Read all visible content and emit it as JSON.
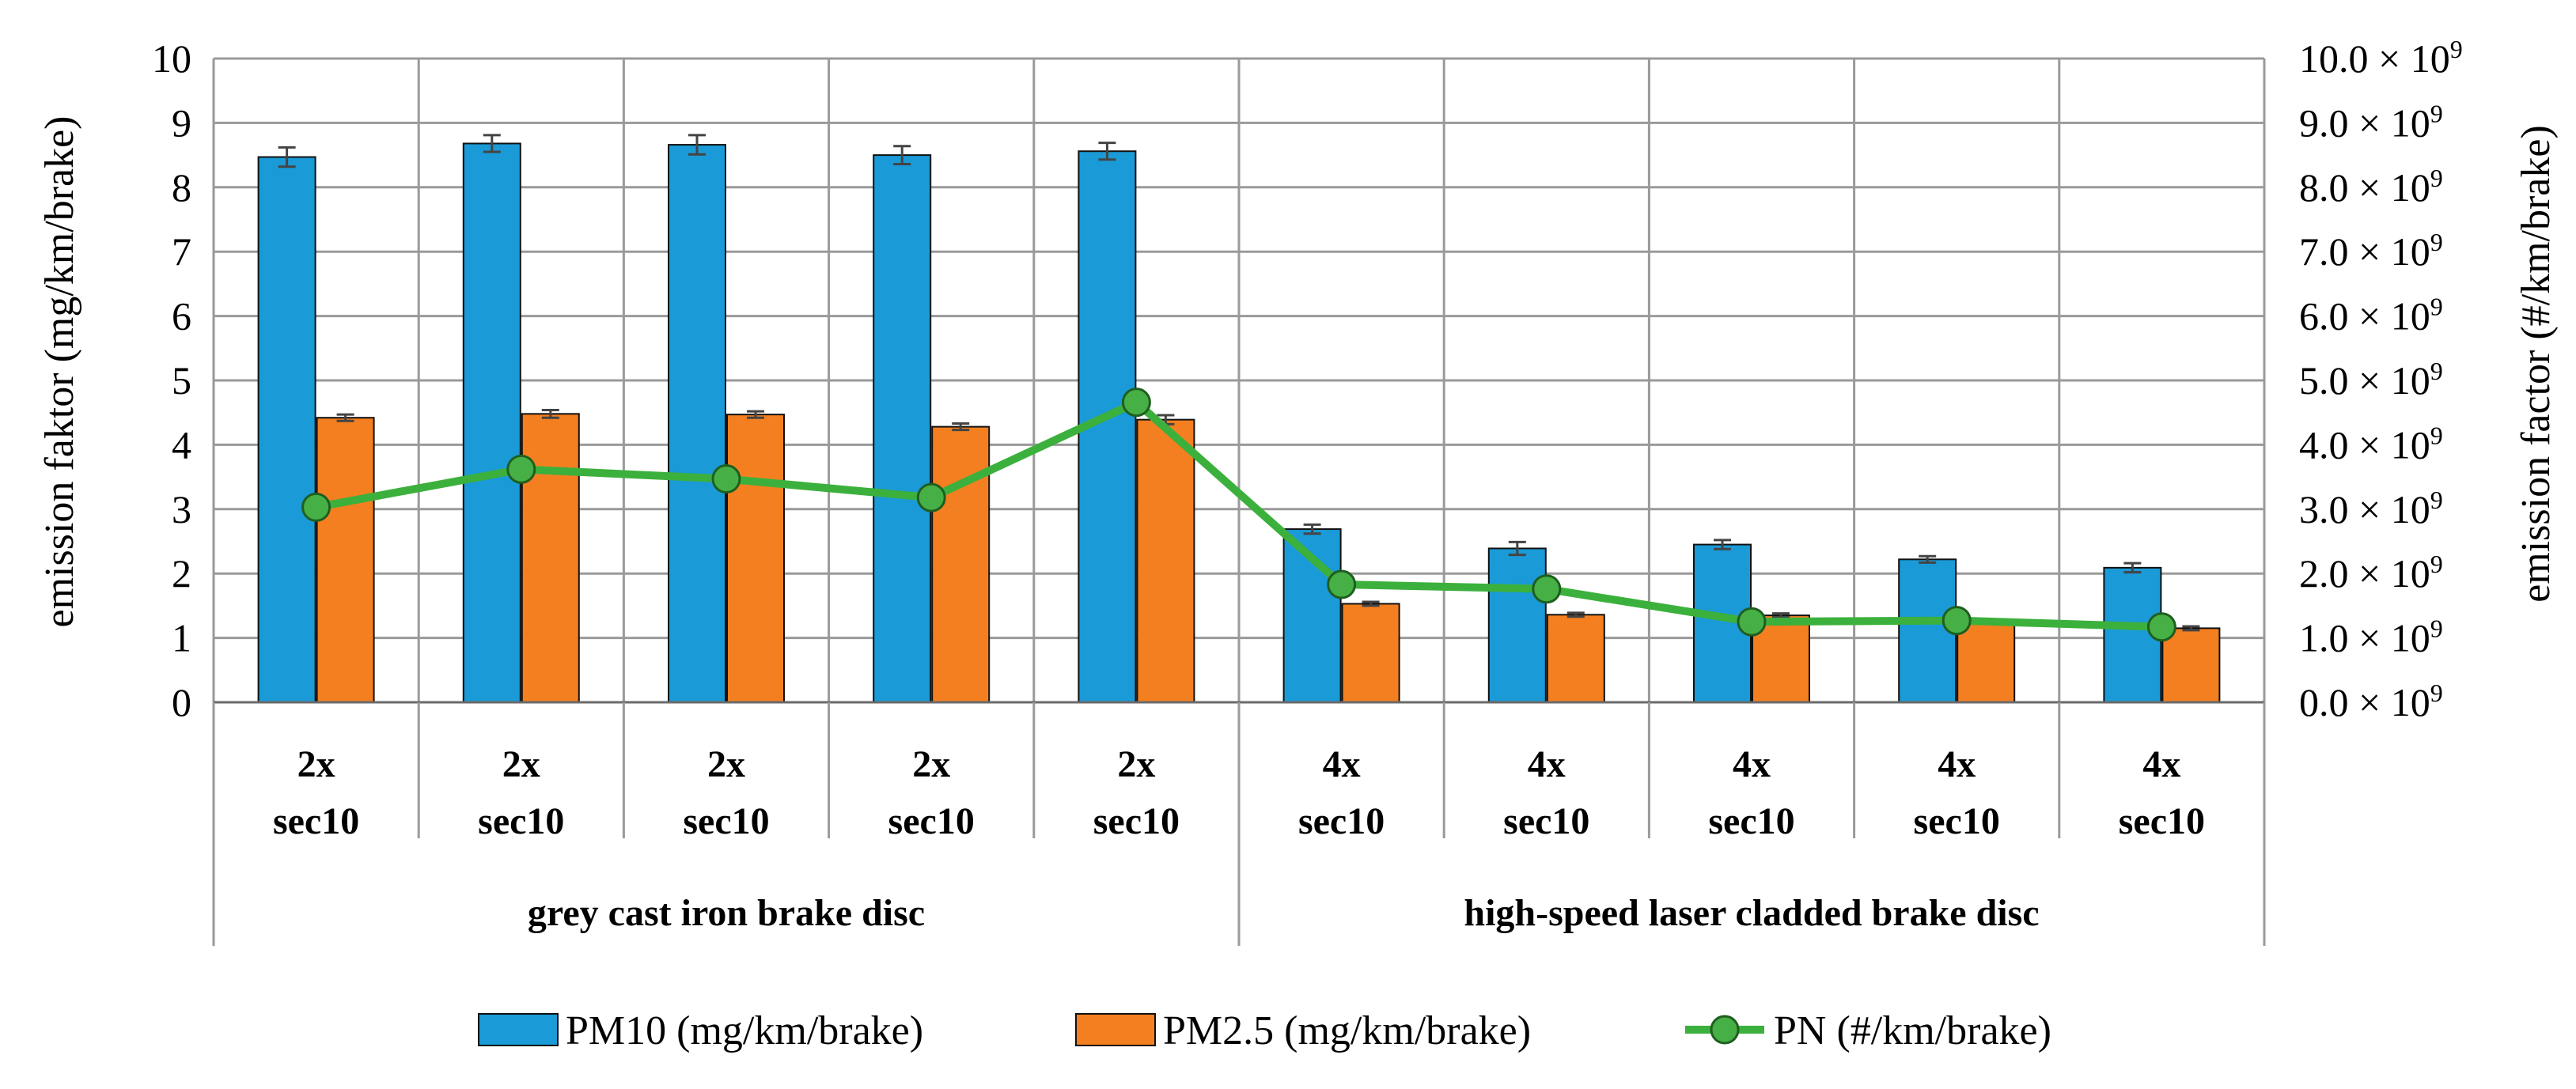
{
  "chart_data": {
    "type": "bar",
    "title": "",
    "ylabel": "emission faktor (mg/km/brake)",
    "y2label": "emission factor (#/km/brake)",
    "ylim": [
      0,
      10
    ],
    "y2lim": [
      0,
      10
    ],
    "yticks": [
      "0",
      "1",
      "2",
      "3",
      "4",
      "5",
      "6",
      "7",
      "8",
      "9",
      "10"
    ],
    "y2ticks": [
      "0.0",
      "1.0",
      "2.0",
      "3.0",
      "4.0",
      "5.0",
      "6.0",
      "7.0",
      "8.0",
      "9.0",
      "10.0"
    ],
    "y2tick_suffix": "× 10",
    "y2tick_exponent": "9",
    "categories": [
      {
        "line1": "2x",
        "line2": "sec10"
      },
      {
        "line1": "2x",
        "line2": "sec10"
      },
      {
        "line1": "2x",
        "line2": "sec10"
      },
      {
        "line1": "2x",
        "line2": "sec10"
      },
      {
        "line1": "2x",
        "line2": "sec10"
      },
      {
        "line1": "4x",
        "line2": "sec10"
      },
      {
        "line1": "4x",
        "line2": "sec10"
      },
      {
        "line1": "4x",
        "line2": "sec10"
      },
      {
        "line1": "4x",
        "line2": "sec10"
      },
      {
        "line1": "4x",
        "line2": "sec10"
      }
    ],
    "groups": [
      {
        "label": "grey cast iron brake disc",
        "from": 0,
        "to": 4
      },
      {
        "label": "high-speed laser cladded brake disc",
        "from": 5,
        "to": 9
      }
    ],
    "series": [
      {
        "name": "PM10 (mg/km/brake)",
        "type": "bar",
        "color": "#1a9ad6",
        "values": [
          8.47,
          8.68,
          8.66,
          8.5,
          8.56,
          2.69,
          2.39,
          2.45,
          2.22,
          2.09
        ],
        "errors": [
          0.15,
          0.13,
          0.15,
          0.14,
          0.13,
          0.07,
          0.1,
          0.07,
          0.05,
          0.07
        ]
      },
      {
        "name": "PM2.5 (mg/km/brake)",
        "type": "bar",
        "color": "#f47f20",
        "values": [
          4.42,
          4.48,
          4.47,
          4.28,
          4.39,
          1.53,
          1.36,
          1.35,
          1.24,
          1.15
        ],
        "errors": [
          0.05,
          0.06,
          0.05,
          0.05,
          0.07,
          0.03,
          0.03,
          0.03,
          0.02,
          0.03
        ]
      },
      {
        "name": "PN (#/km/brake)",
        "type": "line",
        "axis": "right",
        "color": "#3cb03c",
        "marker_color": "#46b046",
        "values": [
          3.03,
          3.62,
          3.47,
          3.18,
          4.66,
          1.83,
          1.76,
          1.25,
          1.27,
          1.17
        ]
      }
    ],
    "legend_position": "bottom",
    "grid": true
  }
}
